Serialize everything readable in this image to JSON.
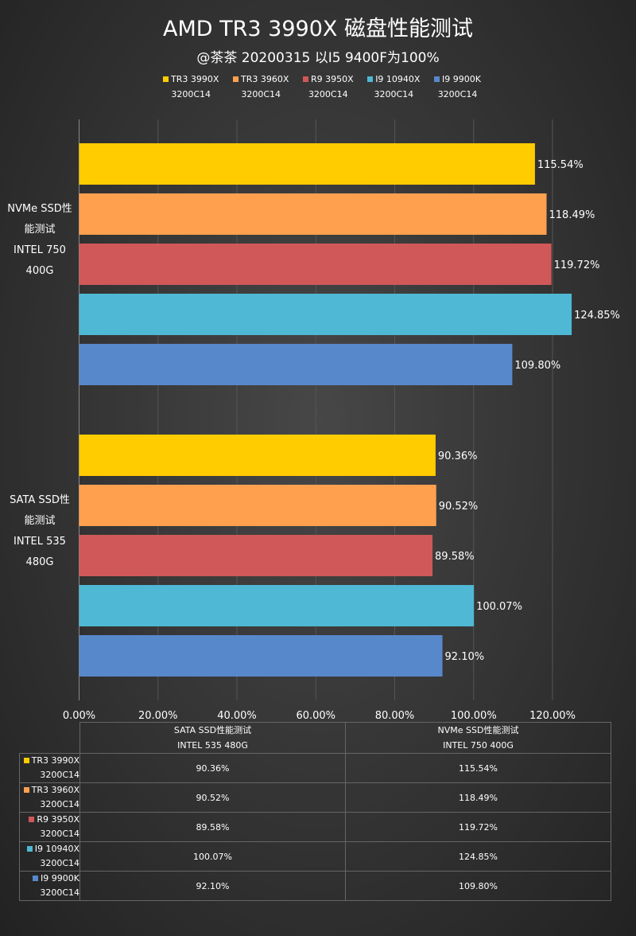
{
  "title": "AMD TR3 3990X 磁盘性能测试",
  "subtitle": "@茶茶 20200315 以I5 9400F为100%",
  "chart_data": {
    "type": "bar",
    "orientation": "horizontal",
    "title": "AMD TR3 3990X 磁盘性能测试",
    "subtitle": "@茶茶 20200315 以I5 9400F为100%",
    "categories": [
      {
        "line1": "NVMe SSD性",
        "line2": "能测试",
        "line3": "INTEL 750",
        "line4": "400G",
        "table_line1": "NVMe SSD性能测试",
        "table_line2": "INTEL 750 400G"
      },
      {
        "line1": "SATA SSD性",
        "line2": "能测试",
        "line3": "INTEL 535",
        "line4": "480G",
        "table_line1": "SATA SSD性能测试",
        "table_line2": "INTEL 535 480G"
      }
    ],
    "series": [
      {
        "name": "TR3 3990X",
        "name2": "3200C14",
        "color": "#FFCC00",
        "values": [
          115.54,
          90.36
        ],
        "labels": [
          "115.54%",
          "90.36%"
        ]
      },
      {
        "name": "TR3 3960X",
        "name2": "3200C14",
        "color": "#FFA04F",
        "values": [
          118.49,
          90.52
        ],
        "labels": [
          "118.49%",
          "90.52%"
        ]
      },
      {
        "name": "R9 3950X",
        "name2": "3200C14",
        "color": "#D05858",
        "values": [
          119.72,
          89.58
        ],
        "labels": [
          "119.72%",
          "89.58%"
        ]
      },
      {
        "name": "I9 10940X",
        "name2": "3200C14",
        "color": "#4FB8D4",
        "values": [
          124.85,
          100.07
        ],
        "labels": [
          "124.85%",
          "100.07%"
        ]
      },
      {
        "name": "I9 9900K",
        "name2": "3200C14",
        "color": "#5888CC",
        "values": [
          109.8,
          92.1
        ],
        "labels": [
          "109.80%",
          "92.10%"
        ]
      }
    ],
    "xlim": [
      0,
      120
    ],
    "xticks": [
      "0.00%",
      "20.00%",
      "40.00%",
      "60.00%",
      "80.00%",
      "100.00%",
      "120.00%"
    ],
    "grid": true,
    "legend": "top",
    "data_table": true
  }
}
